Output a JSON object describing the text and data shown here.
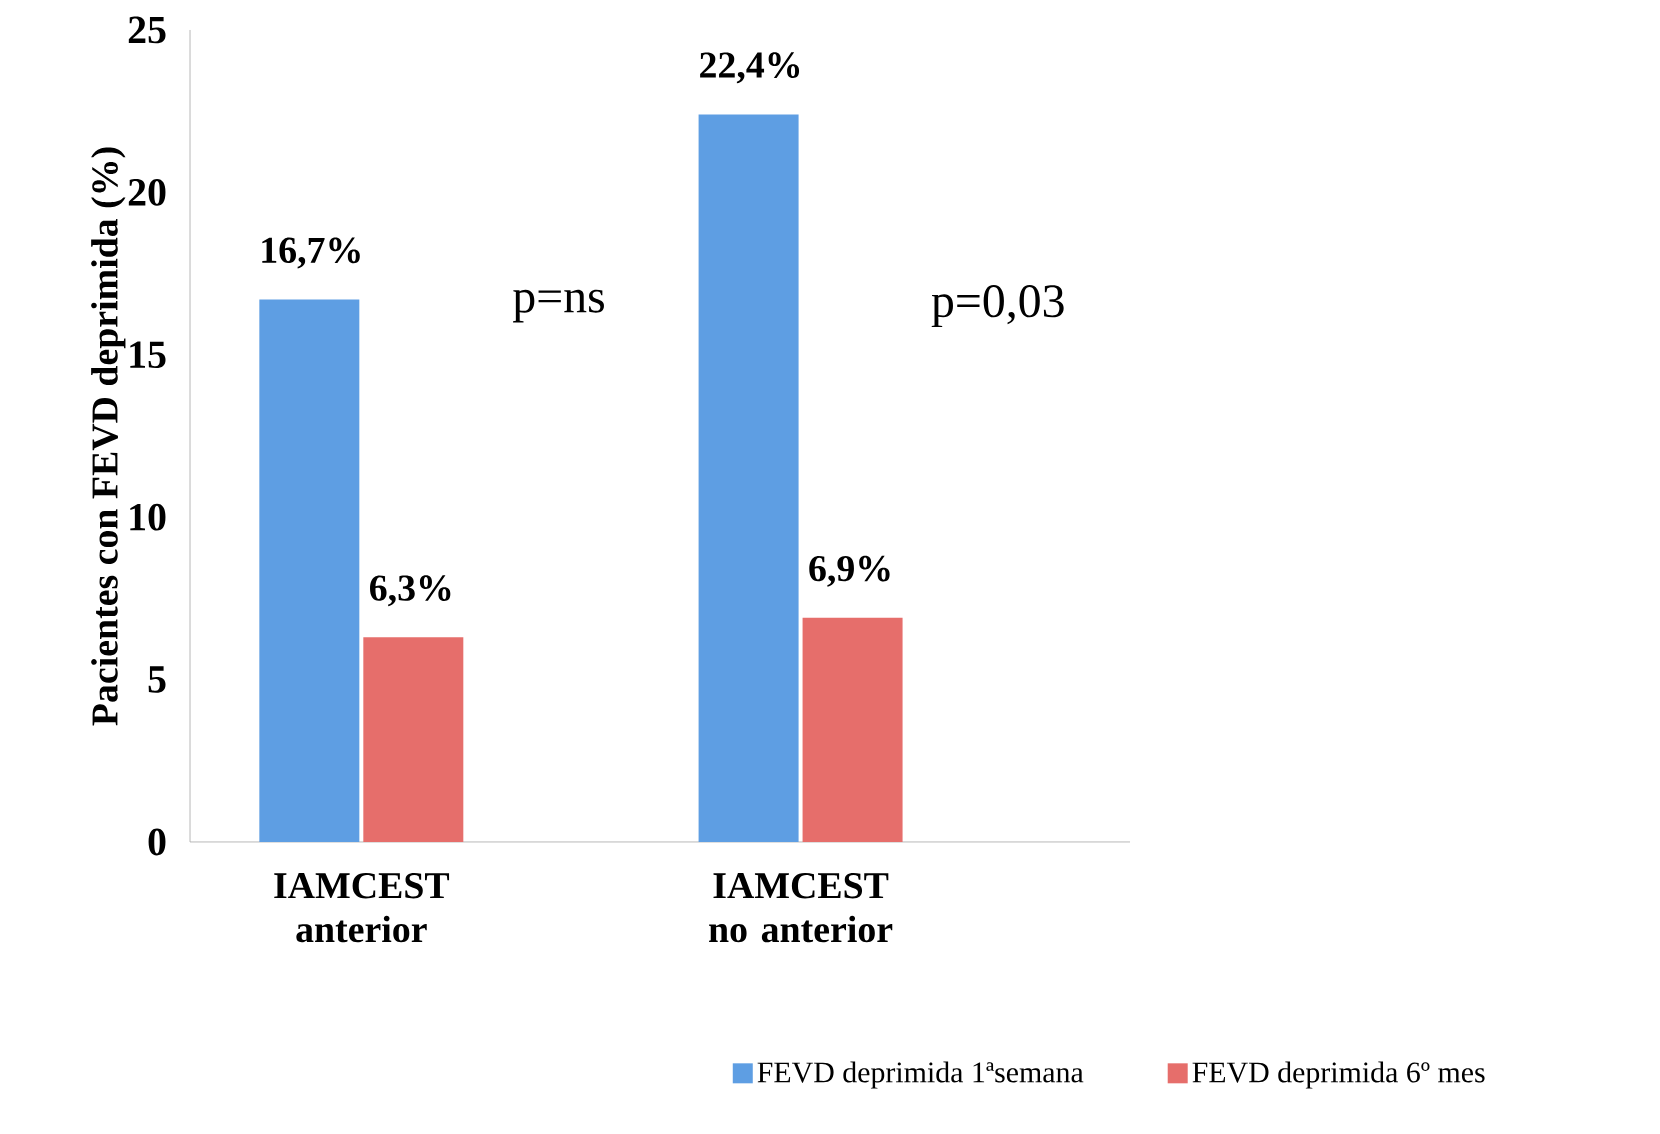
{
  "chart_data": {
    "type": "bar",
    "ylabel": "Pacientes con FEVD deprimida (%)",
    "categories": [
      "IAMCEST anterior",
      "IAMCEST no anterior"
    ],
    "series": [
      {
        "name": "FEVD deprimida 1ªsemana",
        "color": "#5e9ee3",
        "values": [
          16.7,
          22.4
        ],
        "value_labels": [
          "16,7%",
          "22,4%"
        ]
      },
      {
        "name": "FEVD deprimida 6º mes",
        "color": "#e66e6b",
        "values": [
          6.3,
          6.9
        ],
        "value_labels": [
          "6,3%",
          "6,9%"
        ]
      }
    ],
    "annotations": [
      "p=ns",
      "p=0,03"
    ],
    "ylim": [
      0,
      25
    ],
    "yticks": [
      0,
      5,
      10,
      15,
      20,
      25
    ],
    "grid": false,
    "legend": "bottom"
  }
}
